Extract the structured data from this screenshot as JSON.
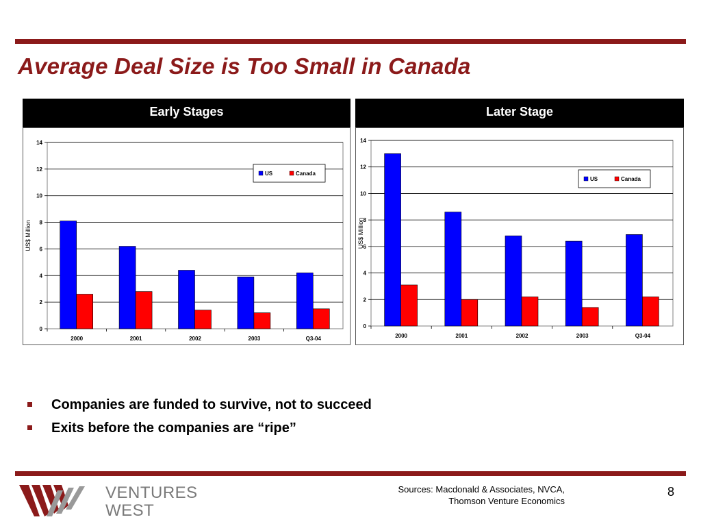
{
  "title": "Average Deal Size is Too Small in Canada",
  "colors": {
    "accent": "#8b1a1a",
    "us": "#0000ff",
    "canada": "#ff0000",
    "header_bg": "#000000"
  },
  "panels": [
    {
      "header": "Early Stages"
    },
    {
      "header": "Later Stage"
    }
  ],
  "chart_data": [
    {
      "type": "bar",
      "title": "Early Stages",
      "categories": [
        "2000",
        "2001",
        "2002",
        "2003",
        "Q3-04"
      ],
      "series": [
        {
          "name": "US",
          "color": "#0000ff",
          "values": [
            8.1,
            6.2,
            4.4,
            3.9,
            4.2
          ]
        },
        {
          "name": "Canada",
          "color": "#ff0000",
          "values": [
            2.6,
            2.8,
            1.4,
            1.2,
            1.5
          ]
        }
      ],
      "ylabel": "US$ Million",
      "ylim": [
        0,
        14
      ],
      "yticks": [
        "0",
        "2",
        "4",
        "6",
        "8",
        "10",
        "12",
        "14"
      ],
      "grid": true,
      "legend": "top-right"
    },
    {
      "type": "bar",
      "title": "Later Stage",
      "categories": [
        "2000",
        "2001",
        "2002",
        "2003",
        "Q3-04"
      ],
      "series": [
        {
          "name": "US",
          "color": "#0000ff",
          "values": [
            13.0,
            8.6,
            6.8,
            6.4,
            6.9
          ]
        },
        {
          "name": "Canada",
          "color": "#ff0000",
          "values": [
            3.1,
            2.0,
            2.2,
            1.4,
            2.2
          ]
        }
      ],
      "ylabel": "US$ Million",
      "ylim": [
        0,
        14
      ],
      "yticks": [
        "0",
        "2",
        "4",
        "6",
        "8",
        "10",
        "12",
        "14"
      ],
      "grid": true,
      "legend": "top-right"
    }
  ],
  "bullets": [
    "Companies are funded to survive, not to succeed",
    "Exits before the companies are “ripe”"
  ],
  "logo": {
    "line1": "VENTURES",
    "line2": "WEST"
  },
  "sources": {
    "line1": "Sources: Macdonald & Associates, NVCA,",
    "line2": "Thomson Venture Economics"
  },
  "page_number": "8"
}
